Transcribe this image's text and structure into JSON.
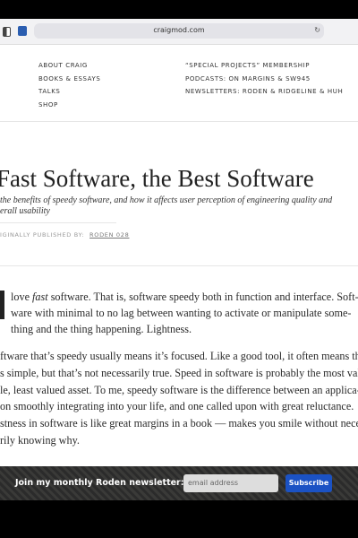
{
  "browser": {
    "url": "craigmod.com"
  },
  "nav": {
    "left": [
      "ABOUT CRAIG",
      "BOOKS & ESSAYS",
      "TALKS",
      "SHOP"
    ],
    "right": [
      "“SPECIAL PROJECTS” MEMBERSHIP",
      "PODCASTS: ON MARGINS & SW945",
      "NEWSLETTERS: RODEN & RIDGELINE & HUH"
    ]
  },
  "article": {
    "title": "Fast Software, the Best Software",
    "subtitle": [
      "the benefits of speedy software, and how it affects user perception of engineering quality and",
      "erall usability"
    ],
    "published_label": "IGINALLY PUBLISHED BY:",
    "published_link": "RODEN 028",
    "dropcap": "I",
    "paragraph1": {
      "line0": [
        "love ",
        "fast",
        " software. That is, software speedy both in function and interface. Soft-"
      ],
      "lines": [
        "ware with minimal to no lag between wanting to activate or manipulate some-",
        "thing and the thing happening. Lightness."
      ]
    },
    "paragraph2": [
      "ftware that’s speedy usually means it’s focused. Like a good tool, it often means that",
      "s simple, but that’s not necessarily true. Speed in software is probably the most valu",
      "le, least valued asset. To me, speedy software is the difference between an applica-",
      "on smoothly integrating into your life, and one called upon with great reluctance.",
      "stness in software is like great margins in a book — makes you smile without neces-",
      "rily knowing why."
    ]
  },
  "newsletter": {
    "prompt": "Join my monthly Roden newsletter:",
    "placeholder": "email address",
    "button": "Subscribe"
  }
}
